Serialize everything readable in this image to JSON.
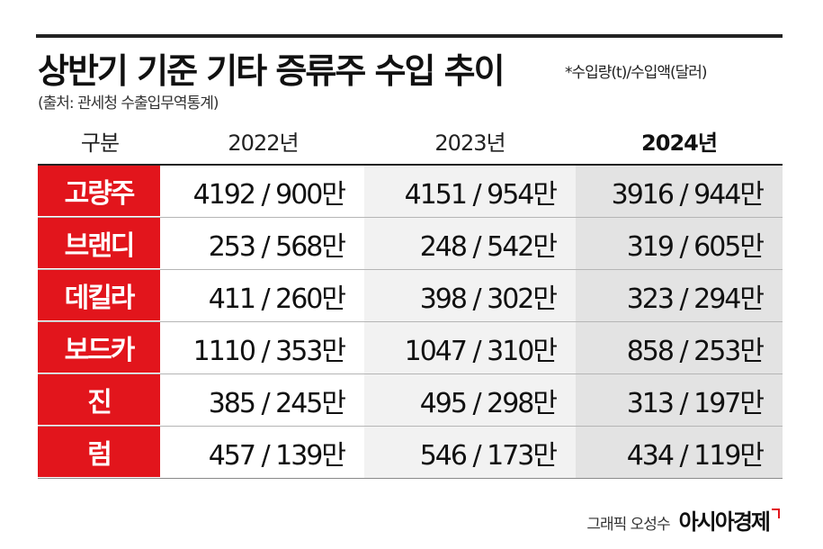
{
  "title": "상반기 기준 기타 증류주 수입 추이",
  "unit_note": "*수입량(t)/수입액(달러)",
  "source": "(출처: 관세청 수출입무역통계)",
  "table": {
    "headers": [
      "구분",
      "2022년",
      "2023년",
      "2024년"
    ],
    "rows": [
      {
        "category": "고량주",
        "y2022": "4192 / 900만",
        "y2023": "4151 / 954만",
        "y2024": "3916 / 944만"
      },
      {
        "category": "브랜디",
        "y2022": "253 / 568만",
        "y2023": "248 / 542만",
        "y2024": "319 / 605만"
      },
      {
        "category": "데킬라",
        "y2022": "411 / 260만",
        "y2023": "398 / 302만",
        "y2024": "323 / 294만"
      },
      {
        "category": "보드카",
        "y2022": "1110 / 353만",
        "y2023": "1047 / 310만",
        "y2024": "858 / 253만"
      },
      {
        "category": "진",
        "y2022": "385 / 245만",
        "y2023": "495 / 298만",
        "y2024": "313 / 197만"
      },
      {
        "category": "럼",
        "y2022": "457 / 139만",
        "y2023": "546 / 173만",
        "y2024": "434 / 119만"
      }
    ]
  },
  "credit": {
    "graphic": "그래픽 오성수",
    "brand": "아시아경제"
  },
  "colors": {
    "category_bg": "#e2151c",
    "col2023_bg": "#f2f2f2",
    "col2024_bg": "#e3e3e3"
  }
}
